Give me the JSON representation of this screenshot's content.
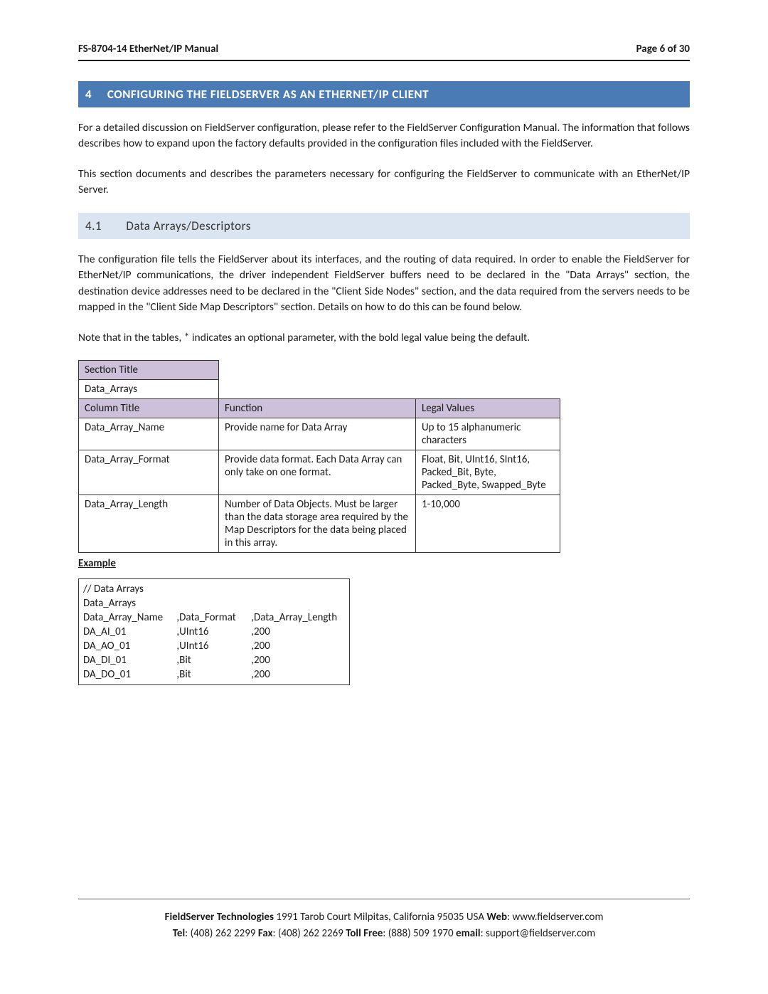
{
  "header": {
    "left": "FS-8704-14 EtherNet/IP Manual",
    "right": "Page 6 of 30"
  },
  "section": {
    "number": "4",
    "title": "CONFIGURING THE FIELDSERVER AS AN ETHERNET/IP CLIENT"
  },
  "intro": {
    "p1": "For a detailed discussion on FieldServer configuration, please refer to the FieldServer Configuration Manual.  The information that follows describes how to expand upon the factory defaults provided in the configuration files included with the FieldServer.",
    "p2": "This section documents and describes the parameters necessary for configuring the FieldServer to communicate with an EtherNet/IP Server."
  },
  "subsection": {
    "number": "4.1",
    "title": "Data Arrays/Descriptors"
  },
  "body": {
    "p1": "The configuration file tells the FieldServer about its interfaces, and the routing of data required. In order to enable the FieldServer for EtherNet/IP communications, the driver independent FieldServer buffers need to be declared in the \"Data Arrays\" section, the destination device addresses need to be declared in the \"Client Side Nodes\" section, and the data required from the servers needs to be mapped in the \"Client Side Map Descriptors\" section.  Details on how to do this can be found below.",
    "p2": "Note that in the tables, * indicates an optional parameter, with the bold legal value being the default."
  },
  "table1": {
    "section_title_label": "Section Title",
    "section_title_value": "Data_Arrays",
    "columns": [
      "Column Title",
      "Function",
      "Legal Values"
    ],
    "rows": [
      {
        "c1": "Data_Array_Name",
        "c2": "Provide name for Data Array",
        "c3": "Up to 15 alphanumeric characters"
      },
      {
        "c1": "Data_Array_Format",
        "c2": "Provide data format. Each Data Array can only take on one format.",
        "c3": "Float, Bit, UInt16, SInt16, Packed_Bit, Byte, Packed_Byte, Swapped_Byte"
      },
      {
        "c1": "Data_Array_Length",
        "c2": "Number of Data Objects. Must be larger than the data storage area required by the Map Descriptors for the data being placed in this array.",
        "c3": "1-10,000"
      }
    ]
  },
  "example_label": "Example",
  "example": {
    "r0": "//    Data Arrays",
    "r1": "Data_Arrays",
    "hdr": [
      "Data_Array_Name",
      ",Data_Format",
      ",Data_Array_Length"
    ],
    "rows": [
      [
        "DA_AI_01",
        ",UInt16",
        ",200"
      ],
      [
        "DA_AO_01",
        ",UInt16",
        ",200"
      ],
      [
        "DA_DI_01",
        ",Bit",
        ",200"
      ],
      [
        "DA_DO_01",
        ",Bit",
        ",200"
      ]
    ]
  },
  "footer": {
    "line1_a": "FieldServer Technologies",
    "line1_b": " 1991 Tarob Court Milpitas, California 95035 USA   ",
    "line1_c": "Web",
    "line1_d": ": www.fieldserver.com",
    "line2_a": "Tel",
    "line2_b": ": (408) 262 2299   ",
    "line2_c": "Fax",
    "line2_d": ": (408) 262 2269   ",
    "line2_e": "Toll Free",
    "line2_f": ": (888) 509 1970   ",
    "line2_g": "email",
    "line2_h": ": support@fieldserver.com"
  }
}
